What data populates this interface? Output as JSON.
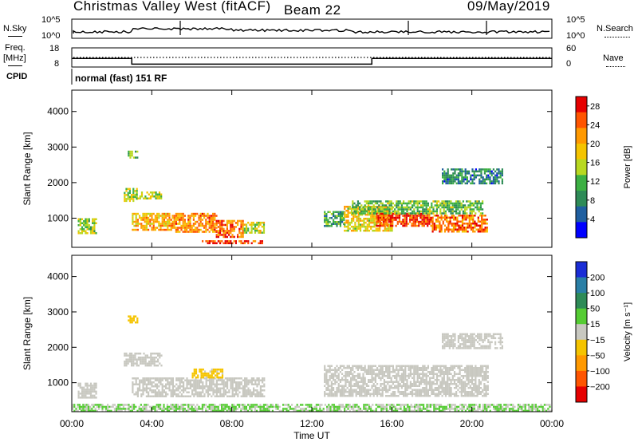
{
  "header": {
    "station": "Christmas Valley West (fitACF)",
    "beam": "Beam 22",
    "date": "09/May/2019"
  },
  "noise_panel": {
    "left_label": "N.Sky",
    "right_label": "N.Search",
    "left_ticks": [
      "10^5",
      "10^0"
    ],
    "right_ticks": [
      "10^5",
      "10^0"
    ]
  },
  "freq_panel": {
    "left_label_1": "Freq.",
    "left_label_2": "[MHz]",
    "left_ticks": [
      "18",
      "8"
    ],
    "right_label": "Nave",
    "right_ticks": [
      "60",
      "0"
    ],
    "freq_steps": [
      [
        0,
        12.5
      ],
      [
        3.0,
        9.5
      ],
      [
        15.0,
        12.5
      ],
      [
        24.0,
        12.5
      ]
    ]
  },
  "cpid": {
    "label": "CPID",
    "mode": "normal (fast) 151 RF"
  },
  "colors": {
    "power": [
      "#0000ff",
      "#1f5fa0",
      "#2e8b57",
      "#3cb043",
      "#b8d820",
      "#f5c400",
      "#ff9900",
      "#ff5500",
      "#e60000"
    ],
    "velocity": [
      "#1a2dd6",
      "#2a7fa6",
      "#2e8b57",
      "#55cc33",
      "#c8c8c0",
      "#f5c400",
      "#ff9900",
      "#ff5500",
      "#e60000"
    ],
    "axis": "#000000",
    "background": "#ffffff"
  },
  "chart_data": [
    {
      "type": "heatmap",
      "title": "Power",
      "ylabel": "Slant Range [km]",
      "xlabel": "Time UT",
      "xlim": [
        0,
        24
      ],
      "ylim": [
        180,
        4600
      ],
      "y_ticks": [
        "1000",
        "2000",
        "3000",
        "4000"
      ],
      "x_ticks": [
        "00:00",
        "04:00",
        "08:00",
        "12:00",
        "16:00",
        "20:00",
        "00:00"
      ],
      "colorbar": {
        "label": "Power [dB]",
        "ticks": [
          "4",
          "8",
          "12",
          "16",
          "20",
          "24",
          "28"
        ],
        "range": [
          0,
          30
        ]
      },
      "echo_regions": [
        {
          "t0": 0.3,
          "t1": 1.2,
          "r0": 600,
          "r1": 1000,
          "level": 14
        },
        {
          "t0": 2.6,
          "t1": 3.3,
          "r0": 1500,
          "r1": 1850,
          "level": 15
        },
        {
          "t0": 3.2,
          "t1": 4.5,
          "r0": 1550,
          "r1": 1750,
          "level": 15
        },
        {
          "t0": 2.8,
          "t1": 3.3,
          "r0": 2700,
          "r1": 2900,
          "level": 12
        },
        {
          "t0": 3.0,
          "t1": 5.0,
          "r0": 700,
          "r1": 1150,
          "level": 20
        },
        {
          "t0": 5.0,
          "t1": 7.2,
          "r0": 600,
          "r1": 1150,
          "level": 22
        },
        {
          "t0": 7.2,
          "t1": 8.6,
          "r0": 500,
          "r1": 950,
          "level": 24
        },
        {
          "t0": 8.6,
          "t1": 9.6,
          "r0": 600,
          "r1": 900,
          "level": 16
        },
        {
          "t0": 6.5,
          "t1": 9.5,
          "r0": 270,
          "r1": 380,
          "level": 26
        },
        {
          "t0": 12.6,
          "t1": 13.6,
          "r0": 800,
          "r1": 1200,
          "level": 10
        },
        {
          "t0": 13.6,
          "t1": 16.0,
          "r0": 650,
          "r1": 1350,
          "level": 18
        },
        {
          "t0": 15.2,
          "t1": 18.0,
          "r0": 800,
          "r1": 1150,
          "level": 26
        },
        {
          "t0": 18.0,
          "t1": 20.8,
          "r0": 650,
          "r1": 1100,
          "level": 24
        },
        {
          "t0": 14.0,
          "t1": 20.5,
          "r0": 1150,
          "r1": 1500,
          "level": 12
        },
        {
          "t0": 18.5,
          "t1": 21.5,
          "r0": 2000,
          "r1": 2400,
          "level": 8
        }
      ]
    },
    {
      "type": "heatmap",
      "title": "Velocity",
      "ylabel": "Slant Range [km]",
      "xlabel": "Time UT",
      "xlim": [
        0,
        24
      ],
      "ylim": [
        180,
        4600
      ],
      "y_ticks": [
        "1000",
        "2000",
        "3000",
        "4000"
      ],
      "x_ticks": [
        "00:00",
        "04:00",
        "08:00",
        "12:00",
        "16:00",
        "20:00",
        "00:00"
      ],
      "colorbar": {
        "label": "Velocity [m s^-1]",
        "ticks": [
          "200",
          "100",
          "50",
          "15",
          "-15",
          "-50",
          "-100",
          "-200"
        ],
        "range": [
          -250,
          250
        ]
      },
      "echo_regions": [
        {
          "t0": 0.3,
          "t1": 1.2,
          "r0": 600,
          "r1": 1000,
          "level": 0
        },
        {
          "t0": 2.6,
          "t1": 4.5,
          "r0": 1500,
          "r1": 1850,
          "level": 0
        },
        {
          "t0": 2.8,
          "t1": 3.3,
          "r0": 2700,
          "r1": 2900,
          "level": -60
        },
        {
          "t0": 3.0,
          "t1": 9.6,
          "r0": 600,
          "r1": 1150,
          "level": 0
        },
        {
          "t0": 6.0,
          "t1": 7.5,
          "r0": 1150,
          "r1": 1400,
          "level": -40
        },
        {
          "t0": 0.0,
          "t1": 24.0,
          "r0": 180,
          "r1": 400,
          "level": 30
        },
        {
          "t0": 12.6,
          "t1": 20.8,
          "r0": 650,
          "r1": 1500,
          "level": 0
        },
        {
          "t0": 18.5,
          "t1": 21.5,
          "r0": 2000,
          "r1": 2400,
          "level": 0
        }
      ]
    }
  ]
}
